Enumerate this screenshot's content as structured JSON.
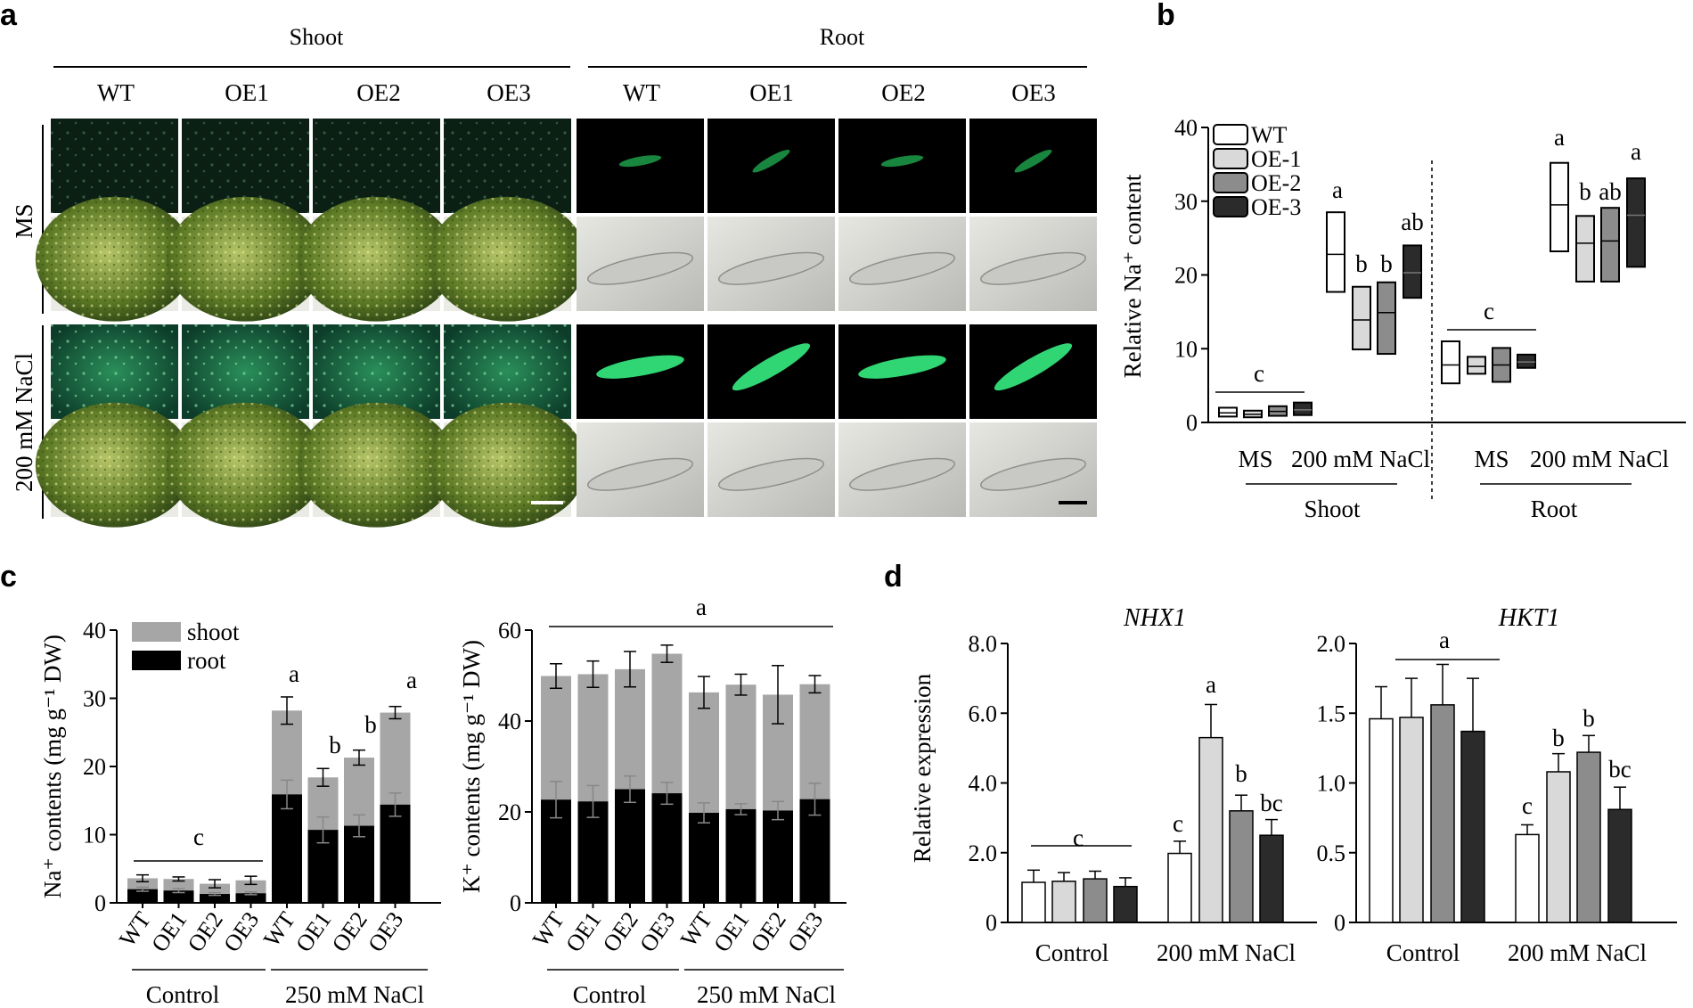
{
  "panels": {
    "a": {
      "letter": "a",
      "group_headers": [
        "Shoot",
        "Root"
      ],
      "columns": [
        "WT",
        "OE1",
        "OE2",
        "OE3",
        "WT",
        "OE1",
        "OE2",
        "OE3"
      ],
      "row_labels": [
        "MS",
        "200 mM NaCl"
      ]
    },
    "b": {
      "letter": "b"
    },
    "c": {
      "letter": "c"
    },
    "d": {
      "letter": "d"
    }
  },
  "colors": {
    "wt": "#ffffff",
    "oe1": "#d9d9d9",
    "oe2": "#8c8c8c",
    "oe3": "#2b2b2b",
    "shoot": "#a6a6a6",
    "root": "#000000"
  },
  "chart_data": [
    {
      "id": "b",
      "type": "box",
      "ylabel": "Relative Na⁺ content",
      "ylim": [
        0,
        40
      ],
      "yticks": [
        "0",
        "10",
        "20",
        "30",
        "40"
      ],
      "legend": [
        "WT",
        "OE-1",
        "OE-2",
        "OE-3"
      ],
      "conditions": [
        "MS",
        "200 mM NaCl",
        "MS",
        "200 mM NaCl"
      ],
      "tissues": [
        "Shoot",
        "Root"
      ],
      "boxes": [
        {
          "tissue": "Shoot",
          "condition": "MS",
          "genotype": "WT",
          "low": 0.8,
          "med": 1.3,
          "high": 2.0
        },
        {
          "tissue": "Shoot",
          "condition": "MS",
          "genotype": "OE-1",
          "low": 0.7,
          "med": 1.1,
          "high": 1.6
        },
        {
          "tissue": "Shoot",
          "condition": "MS",
          "genotype": "OE-2",
          "low": 0.9,
          "med": 1.5,
          "high": 2.2
        },
        {
          "tissue": "Shoot",
          "condition": "MS",
          "genotype": "OE-3",
          "low": 1.0,
          "med": 1.7,
          "high": 2.7
        },
        {
          "tissue": "Shoot",
          "condition": "200 mM NaCl",
          "genotype": "WT",
          "low": 17.7,
          "med": 22.8,
          "high": 28.5
        },
        {
          "tissue": "Shoot",
          "condition": "200 mM NaCl",
          "genotype": "OE-1",
          "low": 9.9,
          "med": 13.9,
          "high": 18.4
        },
        {
          "tissue": "Shoot",
          "condition": "200 mM NaCl",
          "genotype": "OE-2",
          "low": 9.3,
          "med": 14.9,
          "high": 19.0
        },
        {
          "tissue": "Shoot",
          "condition": "200 mM NaCl",
          "genotype": "OE-3",
          "low": 16.9,
          "med": 20.3,
          "high": 24.0
        },
        {
          "tissue": "Root",
          "condition": "MS",
          "genotype": "WT",
          "low": 5.3,
          "med": 7.8,
          "high": 11.0
        },
        {
          "tissue": "Root",
          "condition": "MS",
          "genotype": "OE-1",
          "low": 6.6,
          "med": 7.6,
          "high": 8.9
        },
        {
          "tissue": "Root",
          "condition": "MS",
          "genotype": "OE-2",
          "low": 5.5,
          "med": 7.8,
          "high": 10.1
        },
        {
          "tissue": "Root",
          "condition": "MS",
          "genotype": "OE-3",
          "low": 7.4,
          "med": 8.2,
          "high": 9.2
        },
        {
          "tissue": "Root",
          "condition": "200 mM NaCl",
          "genotype": "WT",
          "low": 23.2,
          "med": 29.5,
          "high": 35.2
        },
        {
          "tissue": "Root",
          "condition": "200 mM NaCl",
          "genotype": "OE-1",
          "low": 19.1,
          "med": 24.3,
          "high": 28.0
        },
        {
          "tissue": "Root",
          "condition": "200 mM NaCl",
          "genotype": "OE-2",
          "low": 19.1,
          "med": 24.6,
          "high": 29.1
        },
        {
          "tissue": "Root",
          "condition": "200 mM NaCl",
          "genotype": "OE-3",
          "low": 21.1,
          "med": 28.1,
          "high": 33.1
        }
      ],
      "letters": [
        "c",
        "a",
        "b",
        "b",
        "ab",
        "c",
        "a",
        "b",
        "ab",
        "a"
      ]
    },
    {
      "id": "c1",
      "type": "bar",
      "ylabel": "Na⁺ contents (mg g⁻¹ DW)",
      "ylim": [
        0,
        40
      ],
      "yticks": [
        "0",
        "10",
        "20",
        "30",
        "40"
      ],
      "legend": [
        "shoot",
        "root"
      ],
      "categories": [
        "WT",
        "OE1",
        "OE2",
        "OE3",
        "WT",
        "OE1",
        "OE2",
        "OE3"
      ],
      "groups": [
        "Control",
        "250 mM NaCl"
      ],
      "series": [
        {
          "name": "shoot",
          "values": [
            3.6,
            3.5,
            2.8,
            3.3,
            28.2,
            18.4,
            21.3,
            27.9
          ],
          "errors": [
            0.5,
            0.3,
            0.6,
            0.6,
            2.0,
            1.3,
            1.1,
            0.9
          ]
        },
        {
          "name": "root",
          "values": [
            2.0,
            1.8,
            1.3,
            1.4,
            15.9,
            10.7,
            11.3,
            14.4
          ],
          "errors": [
            0.3,
            0.3,
            0.2,
            0.2,
            2.1,
            1.9,
            1.6,
            1.7
          ]
        }
      ],
      "letters": [
        "c",
        "a",
        "b",
        "b",
        "a"
      ]
    },
    {
      "id": "c2",
      "type": "bar",
      "ylabel": "K⁺ contents (mg g⁻¹ DW)",
      "ylim": [
        0,
        60
      ],
      "yticks": [
        "0",
        "20",
        "40",
        "60"
      ],
      "categories": [
        "WT",
        "OE1",
        "OE2",
        "OE3",
        "WT",
        "OE1",
        "OE2",
        "OE3"
      ],
      "groups": [
        "Control",
        "250 mM NaCl"
      ],
      "series": [
        {
          "name": "shoot",
          "values": [
            49.9,
            50.3,
            51.4,
            54.8,
            46.3,
            48.0,
            45.8,
            48.1
          ],
          "errors": [
            2.7,
            2.9,
            3.9,
            1.9,
            3.5,
            2.3,
            6.4,
            1.9
          ]
        },
        {
          "name": "root",
          "values": [
            22.7,
            22.3,
            25.0,
            24.1,
            19.8,
            20.6,
            20.3,
            22.8
          ],
          "errors": [
            4.0,
            3.5,
            2.9,
            2.4,
            2.2,
            1.2,
            2.0,
            3.5
          ]
        }
      ],
      "letters": [
        "a"
      ]
    },
    {
      "id": "d1",
      "type": "bar",
      "title": "NHX1",
      "ylabel": "Relative expression",
      "ylim": [
        0,
        8
      ],
      "yticks": [
        "0",
        "2.0",
        "4.0",
        "6.0",
        "8.0"
      ],
      "groups": [
        "Control",
        "200 mM NaCl"
      ],
      "values": [
        1.15,
        1.18,
        1.25,
        1.03,
        1.98,
        5.3,
        3.2,
        2.5
      ],
      "errors": [
        0.35,
        0.25,
        0.22,
        0.25,
        0.35,
        0.95,
        0.45,
        0.45
      ],
      "letters": [
        "c",
        "c",
        "a",
        "b",
        "bc"
      ]
    },
    {
      "id": "d2",
      "type": "bar",
      "title": "HKT1",
      "ylim": [
        0,
        2
      ],
      "yticks": [
        "0",
        "0.5",
        "1.0",
        "1.5",
        "2.0"
      ],
      "groups": [
        "Control",
        "200 mM NaCl"
      ],
      "values": [
        1.46,
        1.47,
        1.56,
        1.37,
        0.63,
        1.08,
        1.22,
        0.81
      ],
      "errors": [
        0.23,
        0.28,
        0.29,
        0.38,
        0.07,
        0.13,
        0.12,
        0.16
      ],
      "letters": [
        "a",
        "c",
        "b",
        "b",
        "bc"
      ]
    }
  ]
}
